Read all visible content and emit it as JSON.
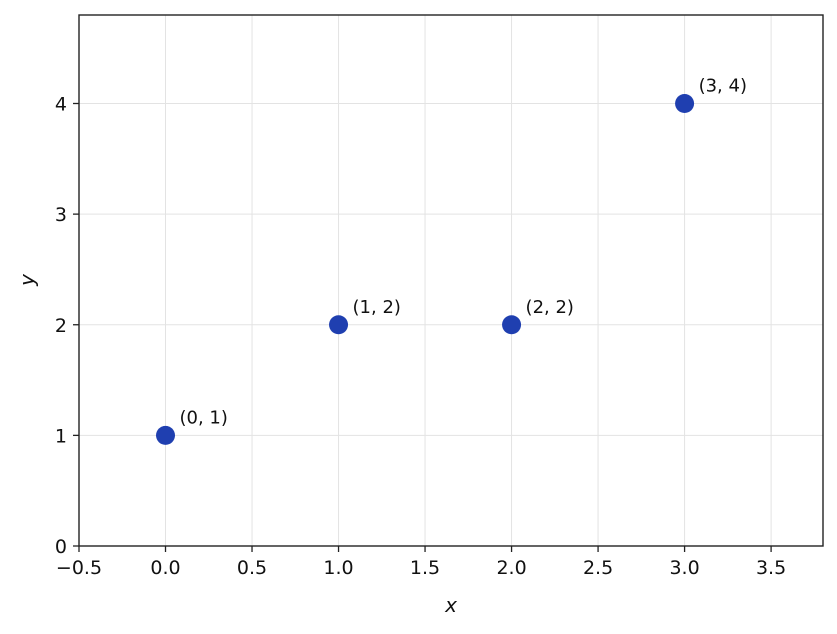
{
  "chart_data": {
    "type": "scatter",
    "x": [
      0,
      1,
      2,
      3
    ],
    "y": [
      1,
      2,
      2,
      4
    ],
    "point_labels": [
      "(0, 1)",
      "(1, 2)",
      "(2, 2)",
      "(3, 4)"
    ],
    "xlabel": "x",
    "ylabel": "y",
    "xlim": [
      -0.5,
      3.8
    ],
    "ylim": [
      0,
      4.8
    ],
    "xticks": [
      -0.5,
      0.0,
      0.5,
      1.0,
      1.5,
      2.0,
      2.5,
      3.0,
      3.5
    ],
    "xtick_labels": [
      "−0.5",
      "0.0",
      "0.5",
      "1.0",
      "1.5",
      "2.0",
      "2.5",
      "3.0",
      "3.5"
    ],
    "yticks": [
      0,
      1,
      2,
      3,
      4
    ],
    "ytick_labels": [
      "0",
      "1",
      "2",
      "3",
      "4"
    ],
    "grid": true,
    "marker_color": "#1f3fb0"
  }
}
